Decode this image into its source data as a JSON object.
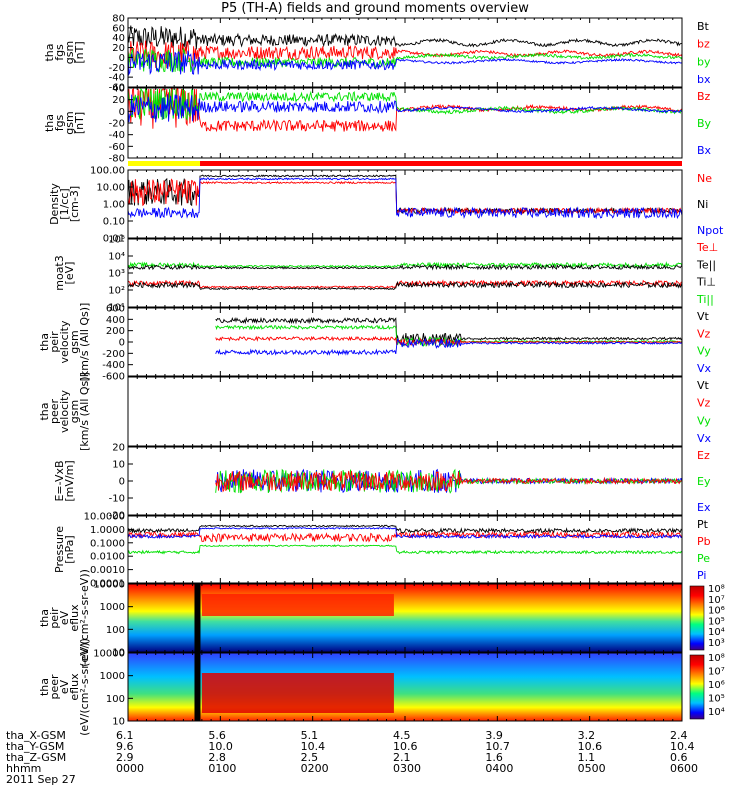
{
  "title": "P5 (TH-A) fields and ground moments overview",
  "colors": {
    "black": "#000000",
    "red": "#ff0000",
    "green": "#00e000",
    "blue": "#0000ff",
    "yellow": "#ffff00"
  },
  "chart_data": [
    {
      "type": "line",
      "ylabel": [
        "tha",
        "fgs",
        "gsm",
        "[nT]"
      ],
      "ylim": [
        -60,
        80
      ],
      "yticks": [
        "80",
        "60",
        "40",
        "20",
        "0",
        "-20",
        "-40",
        "-60"
      ],
      "legend": [
        {
          "name": "Bt",
          "color": "#000000"
        },
        {
          "name": "bz",
          "color": "#ff0000"
        },
        {
          "name": "by",
          "color": "#00e000"
        },
        {
          "name": "bx",
          "color": "#0000ff"
        }
      ]
    },
    {
      "type": "line",
      "ylabel": [
        "tha",
        "fgs",
        "gsm",
        "[nT]"
      ],
      "ylim": [
        -80,
        40
      ],
      "yticks": [
        "40",
        "20",
        "0",
        "-20",
        "-40",
        "-60",
        "-80"
      ],
      "legend": [
        {
          "name": "Bz",
          "color": "#ff0000"
        },
        {
          "name": "By",
          "color": "#00e000"
        },
        {
          "name": "Bx",
          "color": "#0000ff"
        }
      ]
    },
    {
      "type": "line",
      "ylabel": [
        "Density",
        "[1/cc]",
        "[cm-3]"
      ],
      "scale": "log",
      "ylim": [
        0.01,
        100
      ],
      "yticks": [
        "100.00",
        "10.00",
        "1.00",
        "0.10",
        "0.01"
      ],
      "legend": [
        {
          "name": "Ne",
          "color": "#ff0000"
        },
        {
          "name": "Ni",
          "color": "#000000"
        },
        {
          "name": "Npot",
          "color": "#0000ff"
        }
      ]
    },
    {
      "type": "line",
      "ylabel": [
        "moat3",
        "[eV]"
      ],
      "scale": "log",
      "ylim": [
        10,
        100000
      ],
      "yticks": [
        "10⁵",
        "10⁴",
        "10³",
        "10²",
        "10¹"
      ],
      "legend": [
        {
          "name": "Te⊥",
          "color": "#ff0000"
        },
        {
          "name": "Te||",
          "color": "#000000"
        },
        {
          "name": "Ti⊥",
          "color": "#000000"
        },
        {
          "name": "Ti||",
          "color": "#00e000"
        }
      ]
    },
    {
      "type": "line",
      "ylabel": [
        "tha",
        "peir",
        "velocity",
        "gsm",
        "[km/s (All Qs)]"
      ],
      "ylim": [
        -600,
        600
      ],
      "yticks": [
        "600",
        "400",
        "200",
        "0",
        "-200",
        "-400",
        "-600"
      ],
      "legend": [
        {
          "name": "Vt",
          "color": "#000000"
        },
        {
          "name": "Vz",
          "color": "#ff0000"
        },
        {
          "name": "Vy",
          "color": "#00e000"
        },
        {
          "name": "Vx",
          "color": "#0000ff"
        }
      ]
    },
    {
      "type": "line",
      "ylabel": [
        "tha",
        "peer",
        "velocity",
        "gsm",
        "[km/s (All Qs)]"
      ],
      "yticks": [],
      "legend": [
        {
          "name": "Vt",
          "color": "#000000"
        },
        {
          "name": "Vz",
          "color": "#ff0000"
        },
        {
          "name": "Vy",
          "color": "#00e000"
        },
        {
          "name": "Vx",
          "color": "#0000ff"
        }
      ]
    },
    {
      "type": "line",
      "ylabel": [
        "E=-VxB",
        "[mV/m]"
      ],
      "ylim": [
        -20,
        20
      ],
      "yticks": [
        "20",
        "10",
        "0",
        "-10",
        "-20"
      ],
      "legend": [
        {
          "name": "Ez",
          "color": "#ff0000"
        },
        {
          "name": "Ey",
          "color": "#00e000"
        },
        {
          "name": "Ex",
          "color": "#0000ff"
        }
      ]
    },
    {
      "type": "line",
      "ylabel": [
        "Pressure",
        "[nPa]"
      ],
      "scale": "log",
      "ylim": [
        0.0001,
        10
      ],
      "yticks": [
        "10.0000",
        "1.0000",
        "0.1000",
        "0.0100",
        "0.0010",
        "0.0001"
      ],
      "legend": [
        {
          "name": "Pt",
          "color": "#000000"
        },
        {
          "name": "Pb",
          "color": "#ff0000"
        },
        {
          "name": "Pe",
          "color": "#00e000"
        },
        {
          "name": "Pi",
          "color": "#0000ff"
        }
      ]
    },
    {
      "type": "heatmap",
      "ylabel": [
        "tha",
        "peir",
        "eV",
        "eflux",
        "(eV/(cm²-s-sr-eV))"
      ],
      "scale": "log",
      "ylim": [
        10,
        10000
      ],
      "yticks": [
        "10000",
        "1000",
        "100",
        "10"
      ],
      "colorbar": [
        "10⁸",
        "10⁷",
        "10⁶",
        "10⁵",
        "10⁴",
        "10³"
      ]
    },
    {
      "type": "heatmap",
      "ylabel": [
        "tha",
        "peer",
        "eV",
        "eflux",
        "(eV/(cm²-s-sr-eV))"
      ],
      "scale": "log",
      "ylim": [
        10,
        10000
      ],
      "yticks": [
        "10000",
        "1000",
        "100",
        "10"
      ],
      "colorbar": [
        "10⁸",
        "10⁷",
        "10⁶",
        "10⁵",
        "10⁴"
      ]
    }
  ],
  "xaxis": {
    "rows": [
      {
        "label": "tha_X-GSM",
        "values": [
          "6.1",
          "5.6",
          "5.1",
          "4.5",
          "3.9",
          "3.2",
          "2.4"
        ]
      },
      {
        "label": "tha_Y-GSM",
        "values": [
          "9.6",
          "10.0",
          "10.4",
          "10.6",
          "10.7",
          "10.6",
          "10.4"
        ]
      },
      {
        "label": "tha_Z-GSM",
        "values": [
          "2.9",
          "2.8",
          "2.5",
          "2.1",
          "1.6",
          "1.1",
          "0.6"
        ]
      },
      {
        "label": "hhmm",
        "values": [
          "0000",
          "0100",
          "0200",
          "0300",
          "0400",
          "0500",
          "0600"
        ]
      }
    ],
    "date": "2011 Sep 27"
  }
}
